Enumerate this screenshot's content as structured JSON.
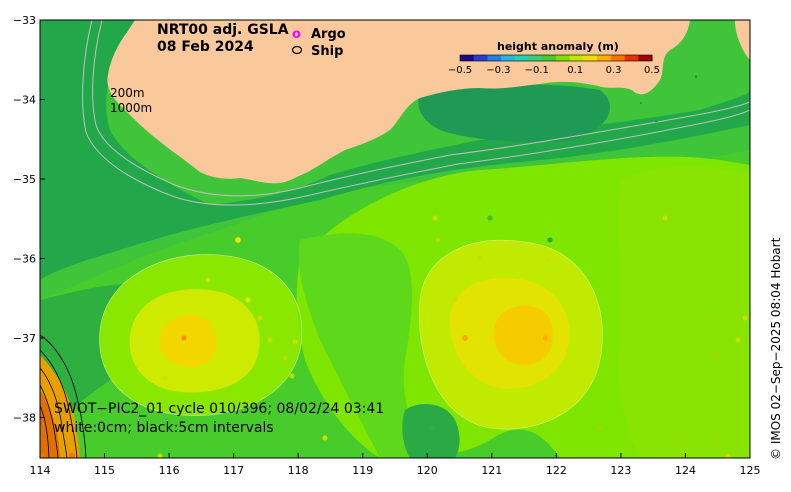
{
  "title": {
    "line1": "NRT00 adj. GSLA",
    "line2": "08 Feb 2024"
  },
  "legend": {
    "argo_symbol": "o",
    "argo_label": "Argo",
    "ship_label": "Ship",
    "argo_color": "#ff00ff"
  },
  "colorbar": {
    "title": "height anomaly (m)",
    "ticks": [
      "−0.5",
      "−0.3",
      "−0.1",
      "0.1",
      "0.3",
      "0.5"
    ]
  },
  "depth_labels": {
    "shallow": "200m",
    "deep": "1000m"
  },
  "swath_info": {
    "line1": "SWOT−PIC2_01 cycle 010/396; 08/02/24 03:41",
    "line2": "white:0cm; black:5cm intervals"
  },
  "credit": "©  IMOS 02−Sep−2025 08:04 Hobart",
  "axes": {
    "x_ticks": [
      "114",
      "115",
      "116",
      "117",
      "118",
      "119",
      "120",
      "121",
      "122",
      "123",
      "124",
      "125"
    ],
    "y_ticks": [
      "−33",
      "−34",
      "−35",
      "−36",
      "−37",
      "−38"
    ]
  },
  "colors": {
    "land": "#f9c99b",
    "ocean_base": "#44cc33",
    "shelf": "#22aa44",
    "anomaly_high": "#ffcc00",
    "anomaly_mid": "#ddee00",
    "anomaly_low": "#88ee00"
  }
}
